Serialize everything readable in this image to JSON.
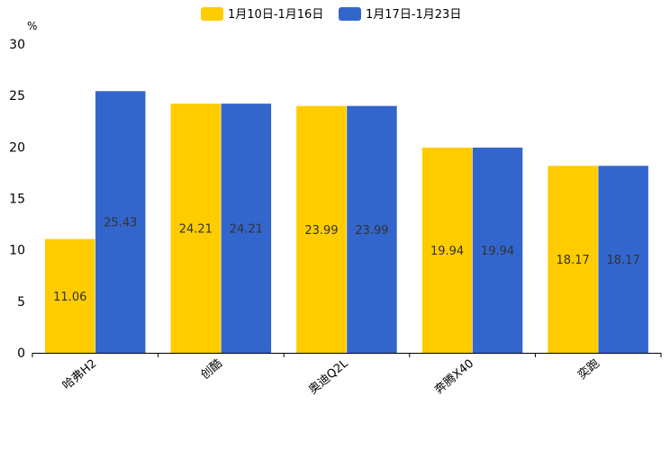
{
  "chart_data": {
    "type": "bar",
    "title": "",
    "xlabel": "",
    "ylabel": "%",
    "ylim": [
      0,
      30
    ],
    "yticks": [
      0,
      5,
      10,
      15,
      20,
      25,
      30
    ],
    "grid": false,
    "legend_position": "top-center",
    "categories": [
      "哈弗H2",
      "创酷",
      "奥迪Q2L",
      "奔腾X40",
      "奕跑"
    ],
    "series": [
      {
        "name": "1月10日-1月16日",
        "color": "#FFCC00",
        "values": [
          11.06,
          24.21,
          23.99,
          19.94,
          18.17
        ]
      },
      {
        "name": "1月17日-1月23日",
        "color": "#3366CC",
        "values": [
          25.43,
          24.21,
          23.99,
          19.94,
          18.17
        ]
      }
    ]
  }
}
